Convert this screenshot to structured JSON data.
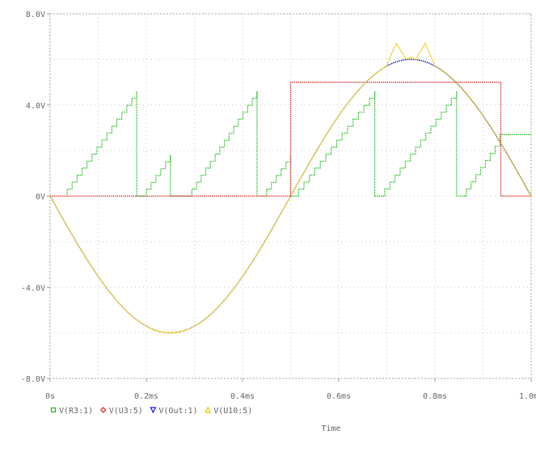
{
  "chart_data": {
    "type": "line",
    "xlabel": "Time",
    "ylabel": "",
    "xlim": [
      0,
      1.0
    ],
    "ylim": [
      -8,
      8
    ],
    "x_unit": "ms",
    "grid": true,
    "legend_position": "bottom-left",
    "x_ticks": [
      {
        "value": 0.0,
        "label": "0s"
      },
      {
        "value": 0.2,
        "label": "0.2ms"
      },
      {
        "value": 0.4,
        "label": "0.4ms"
      },
      {
        "value": 0.6,
        "label": "0.6ms"
      },
      {
        "value": 0.8,
        "label": "0.8ms"
      },
      {
        "value": 1.0,
        "label": "1.0ms"
      }
    ],
    "y_ticks": [
      {
        "value": 8,
        "label": "8.0V"
      },
      {
        "value": 4,
        "label": "4.0V"
      },
      {
        "value": 0,
        "label": "0V"
      },
      {
        "value": -4,
        "label": "-4.0V"
      },
      {
        "value": -8,
        "label": "-8.0V"
      }
    ],
    "series": [
      {
        "name": "V(R3:1)",
        "color": "#22bb22",
        "marker": "square",
        "style": "staircase",
        "x": [
          0.0,
          0.025,
          0.18,
          0.18,
          0.19,
          0.25,
          0.25,
          0.28,
          0.285,
          0.43,
          0.43,
          0.44,
          0.5,
          0.5,
          0.505,
          0.675,
          0.675,
          0.685,
          0.845,
          0.845,
          0.855,
          0.935,
          0.935,
          1.0
        ],
        "y": [
          0.0,
          0.0,
          4.6,
          0.0,
          0.0,
          1.8,
          0.0,
          0.0,
          0.0,
          4.6,
          0.0,
          0.0,
          1.8,
          0.0,
          0.0,
          4.6,
          0.0,
          0.0,
          4.6,
          0.0,
          0.0,
          2.5,
          2.7,
          2.7
        ]
      },
      {
        "name": "V(U3:5)",
        "color": "#dd2222",
        "marker": "diamond",
        "style": "step",
        "x": [
          0.0,
          0.5,
          0.5,
          0.937,
          0.937,
          1.0
        ],
        "y": [
          0.0,
          0.0,
          5.0,
          5.0,
          0.0,
          0.0
        ]
      },
      {
        "name": "V(Out:1)",
        "color": "#1a1acc",
        "marker": "triangle-down",
        "style": "sine",
        "amplitude": 6.0,
        "period_ms": 1.0,
        "phase": "inverted",
        "x": [
          0.0,
          0.05,
          0.1,
          0.15,
          0.2,
          0.25,
          0.3,
          0.35,
          0.4,
          0.45,
          0.5,
          0.55,
          0.6,
          0.65,
          0.7,
          0.75,
          0.8,
          0.85,
          0.9,
          0.95,
          1.0
        ],
        "y": [
          0.0,
          -1.85,
          -3.53,
          -4.85,
          -5.71,
          -6.0,
          -5.71,
          -4.85,
          -3.53,
          -1.85,
          0.0,
          1.85,
          3.53,
          4.85,
          5.71,
          6.0,
          5.71,
          4.85,
          3.53,
          1.85,
          0.0
        ]
      },
      {
        "name": "V(U10:5)",
        "color": "#e6c800",
        "marker": "triangle-up",
        "style": "sine",
        "amplitude": 6.0,
        "period_ms": 1.0,
        "phase": "inverted",
        "x": [
          0.0,
          0.05,
          0.1,
          0.15,
          0.2,
          0.25,
          0.3,
          0.35,
          0.4,
          0.45,
          0.5,
          0.55,
          0.6,
          0.65,
          0.68,
          0.7,
          0.72,
          0.74,
          0.75,
          0.76,
          0.78,
          0.8,
          0.85,
          0.9,
          0.95,
          1.0
        ],
        "y": [
          0.0,
          -1.85,
          -3.53,
          -4.85,
          -5.71,
          -6.0,
          -5.71,
          -4.85,
          -3.53,
          -1.85,
          0.0,
          1.85,
          3.53,
          4.85,
          5.3,
          5.8,
          6.7,
          6.0,
          6.1,
          6.0,
          6.7,
          5.71,
          4.85,
          3.53,
          1.85,
          0.0
        ]
      }
    ]
  }
}
